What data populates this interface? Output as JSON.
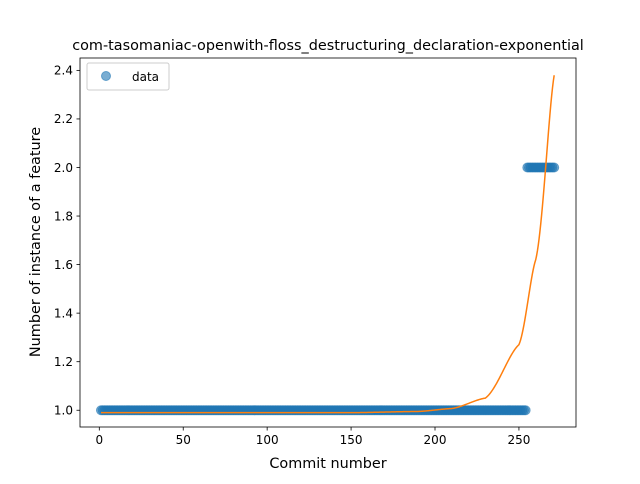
{
  "chart_data": {
    "type": "scatter",
    "title": "com-tasomaniac-openwith-floss_destructuring_declaration-exponential",
    "xlabel": "Commit number",
    "ylabel": "Number of instance of a feature",
    "xlim": [
      -11.5,
      284
    ],
    "ylim": [
      0.931,
      2.451
    ],
    "xticks": [
      0,
      50,
      100,
      150,
      200,
      250
    ],
    "yticks": [
      1.0,
      1.2,
      1.4,
      1.6,
      1.8,
      2.0,
      2.2,
      2.4
    ],
    "xtick_labels": [
      "0",
      "50",
      "100",
      "150",
      "200",
      "250"
    ],
    "ytick_labels": [
      "1.0",
      "1.2",
      "1.4",
      "1.6",
      "1.8",
      "2.0",
      "2.2",
      "2.4"
    ],
    "grid": false,
    "legend": {
      "position": "upper-left",
      "entries": [
        "data"
      ]
    },
    "series": [
      {
        "name": "data",
        "kind": "scatter",
        "color": "#1f77b4",
        "segments": [
          {
            "x_start": 1,
            "x_end": 254,
            "y": 1.0
          },
          {
            "x_start": 255,
            "x_end": 271,
            "y": 2.0
          }
        ]
      },
      {
        "kind": "line",
        "color": "#ff7f0e",
        "x_range": [
          1,
          271
        ],
        "curve_points": [
          {
            "x": 1,
            "y": 0.99
          },
          {
            "x": 150,
            "y": 0.99
          },
          {
            "x": 190,
            "y": 0.995
          },
          {
            "x": 210,
            "y": 1.007
          },
          {
            "x": 230,
            "y": 1.05
          },
          {
            "x": 250,
            "y": 1.27
          },
          {
            "x": 260,
            "y": 1.62
          },
          {
            "x": 271,
            "y": 2.38
          }
        ]
      }
    ]
  }
}
